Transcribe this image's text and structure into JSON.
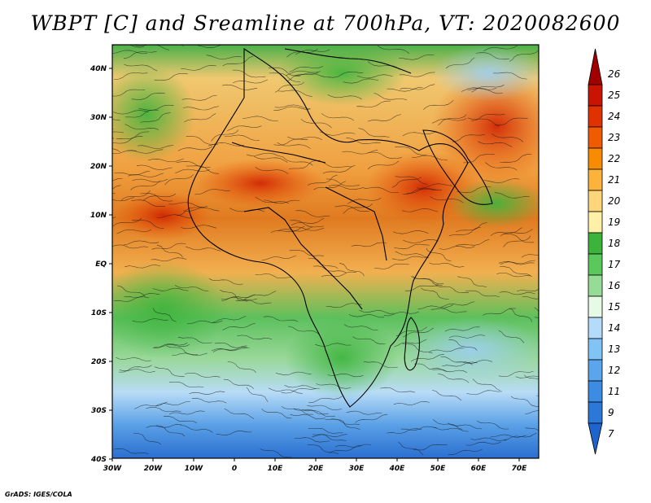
{
  "title": "WBPT [C] and Sreamline at 700hPa, VT: 2020082600",
  "credit": "GrADS: IGES/COLA",
  "axes": {
    "lon_labels": [
      "30W",
      "20W",
      "10W",
      "0",
      "10E",
      "20E",
      "30E",
      "40E",
      "50E",
      "60E",
      "70E"
    ],
    "lat_labels": [
      "40N",
      "30N",
      "20N",
      "10N",
      "EQ",
      "10S",
      "20S",
      "30S",
      "40S"
    ]
  },
  "colorbar": {
    "levels": [
      "26",
      "25",
      "24",
      "23",
      "22",
      "21",
      "20",
      "19",
      "18",
      "17",
      "16",
      "15",
      "14",
      "13",
      "12",
      "11",
      "9",
      "7"
    ],
    "colors": [
      "#a00000",
      "#c81400",
      "#e03200",
      "#f05a00",
      "#f88c00",
      "#fdb23c",
      "#fdd67c",
      "#fff0a8",
      "#3cb43c",
      "#5ac85a",
      "#96dc96",
      "#e6fae6",
      "#b4dcfa",
      "#82c3f5",
      "#5aa5eb",
      "#3c8ce1",
      "#2c78d8",
      "#1e64cd"
    ]
  }
}
